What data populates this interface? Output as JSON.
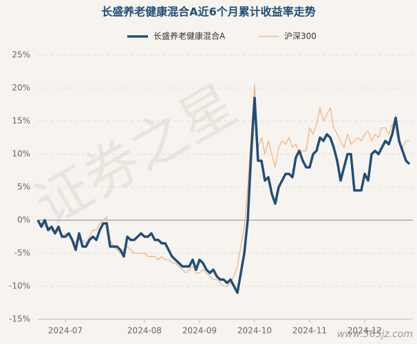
{
  "chart_data": {
    "type": "line",
    "title": "长盛养老健康混合A近6个月累计收益率走势",
    "watermark": "证券之星",
    "site_mark": "www.365jz.com",
    "categories": [
      null,
      null,
      null,
      null,
      null,
      null,
      null,
      null,
      "2024-07",
      null,
      null,
      null,
      null,
      null,
      null,
      null,
      null,
      null,
      null,
      null,
      null,
      null,
      null,
      null,
      null,
      null,
      null,
      null,
      null,
      null,
      null,
      "2024-08",
      null,
      null,
      null,
      null,
      null,
      null,
      null,
      null,
      null,
      null,
      null,
      null,
      null,
      null,
      null,
      "2024-09",
      null,
      null,
      null,
      null,
      null,
      null,
      null,
      null,
      null,
      null,
      null,
      null,
      null,
      null,
      null,
      "2024-10",
      null,
      null,
      null,
      null,
      null,
      null,
      null,
      null,
      null,
      null,
      null,
      null,
      null,
      null,
      null,
      "2024-11",
      null,
      null,
      null,
      null,
      null,
      null,
      null,
      null,
      null,
      null,
      null,
      null,
      null,
      null,
      null,
      "2024-12",
      null,
      null,
      null,
      null,
      null,
      null,
      null,
      null,
      null,
      null,
      null,
      null,
      null
    ],
    "series": [
      {
        "name": "长盛养老健康混合A",
        "color": "#1f4e79",
        "width": 3.5,
        "values": [
          0,
          -1,
          0,
          -1.5,
          -1,
          -2,
          -1,
          -2.5,
          -2.5,
          -2,
          -3,
          -4.5,
          -2,
          -4,
          -4,
          -3,
          -2.5,
          -3,
          -1.5,
          -0.5,
          -0.5,
          -4,
          -4,
          -4,
          -4.5,
          -5.5,
          -2.5,
          -3,
          -3,
          -2.5,
          -2,
          -2.5,
          -2.5,
          -2,
          -3,
          -3,
          -3.5,
          -3.5,
          -4.5,
          -5.5,
          -6,
          -6.5,
          -7,
          -7,
          -7,
          -6,
          -7.5,
          -6,
          -6.5,
          -7.5,
          -8,
          -7.5,
          -8.5,
          -9,
          -9,
          -9.5,
          -9,
          -10,
          -11,
          -8,
          -5,
          0,
          10,
          18.5,
          9,
          9,
          6,
          6.5,
          4,
          2.5,
          5,
          6,
          7,
          7,
          6.5,
          9.5,
          10.5,
          9,
          8,
          8,
          10,
          10.5,
          12.5,
          12,
          13,
          12.5,
          11,
          9,
          6,
          8,
          10,
          10,
          4.5,
          4.5,
          4.5,
          7,
          6,
          10,
          10.5,
          10,
          11,
          12,
          11.5,
          13,
          15.5,
          12,
          10.5,
          9,
          8.5
        ]
      },
      {
        "name": "沪深300",
        "color": "#f4b183",
        "width": 1.3,
        "values": [
          0,
          -0.5,
          -1,
          -1,
          -1.5,
          -2,
          -1.5,
          -2.5,
          -2,
          -2,
          -3,
          -3.5,
          -3,
          -3,
          -3.5,
          -2.5,
          -1.5,
          -1.5,
          -0.5,
          0,
          0.5,
          -3,
          -4,
          -4.5,
          -5,
          -4.5,
          -4,
          -4.5,
          -5,
          -5,
          -5,
          -5,
          -5.5,
          -5.5,
          -5.5,
          -6,
          -5.5,
          -6,
          -6,
          -6.5,
          -6.5,
          -7,
          -7.5,
          -8,
          -7.5,
          -7,
          -8,
          -8,
          -7.5,
          -8,
          -8.5,
          -9,
          -9,
          -9.5,
          -10,
          -10,
          -9.5,
          -8.5,
          -7,
          -4,
          -1,
          5,
          13,
          20.5,
          11,
          12.5,
          10,
          12,
          10,
          8,
          11,
          12,
          11.5,
          12.5,
          11,
          11.5,
          10,
          10.5,
          10.5,
          14,
          13,
          14.5,
          17,
          15,
          16,
          17,
          14,
          13,
          12,
          11,
          13,
          11.5,
          12,
          12.5,
          12,
          13,
          13.5,
          12,
          13,
          12.5,
          14,
          14,
          13,
          14.5,
          14,
          11.5,
          11,
          12,
          12
        ]
      }
    ],
    "ylim": [
      -15,
      25
    ],
    "yticks": [
      {
        "value": -15,
        "label": "-15%"
      },
      {
        "value": -10,
        "label": "-10%"
      },
      {
        "value": -5,
        "label": "-5%"
      },
      {
        "value": 0,
        "label": "0%"
      },
      {
        "value": 5,
        "label": "5%"
      },
      {
        "value": 10,
        "label": "10%"
      },
      {
        "value": 15,
        "label": "15%"
      },
      {
        "value": 20,
        "label": "20%"
      },
      {
        "value": 25,
        "label": "25%"
      }
    ],
    "grid": true
  }
}
